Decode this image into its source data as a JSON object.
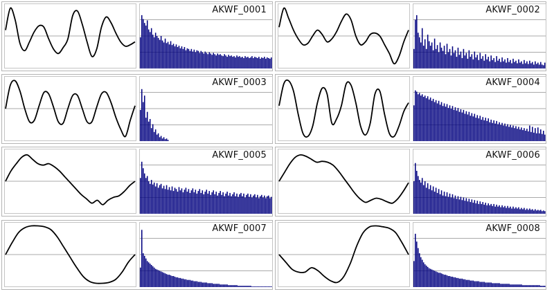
{
  "colors": {
    "bar": "#00007f",
    "wave": "#000000",
    "guide": "#a9a9a9",
    "frame": "#b4b4b4"
  },
  "chart_data": [
    {
      "type": "line+bar",
      "title": "AKWF_0001",
      "waveform": [
        0.2,
        0.95,
        0.55,
        -0.25,
        -0.5,
        -0.2,
        0.15,
        0.35,
        0.3,
        -0.1,
        -0.45,
        -0.6,
        -0.4,
        -0.1,
        0.7,
        0.85,
        0.4,
        -0.2,
        -0.7,
        -0.45,
        0.3,
        0.65,
        0.45,
        0.1,
        -0.2,
        -0.35,
        -0.3,
        -0.2
      ],
      "spectrum": [
        0.48,
        0.82,
        0.76,
        0.7,
        0.66,
        0.74,
        0.6,
        0.56,
        0.62,
        0.52,
        0.48,
        0.55,
        0.5,
        0.47,
        0.44,
        0.5,
        0.43,
        0.4,
        0.46,
        0.39,
        0.41,
        0.37,
        0.42,
        0.36,
        0.38,
        0.34,
        0.37,
        0.33,
        0.35,
        0.31,
        0.34,
        0.3,
        0.33,
        0.28,
        0.31,
        0.3,
        0.27,
        0.3,
        0.26,
        0.29,
        0.25,
        0.28,
        0.27,
        0.24,
        0.27,
        0.25,
        0.23,
        0.26,
        0.24,
        0.22,
        0.25,
        0.23,
        0.21,
        0.24,
        0.22,
        0.2,
        0.23,
        0.21,
        0.22,
        0.2,
        0.19,
        0.22,
        0.2,
        0.18,
        0.21,
        0.19,
        0.2,
        0.18,
        0.19,
        0.17,
        0.2,
        0.18,
        0.19,
        0.17,
        0.18,
        0.16,
        0.19,
        0.17,
        0.18,
        0.16,
        0.17,
        0.19,
        0.16,
        0.18,
        0.17,
        0.16,
        0.18,
        0.15,
        0.17,
        0.16,
        0.18,
        0.15,
        0.17,
        0.16,
        0.15,
        0.17
      ]
    },
    {
      "type": "line+bar",
      "title": "AKWF_0002",
      "waveform": [
        0.3,
        0.95,
        0.6,
        0.2,
        -0.1,
        -0.3,
        -0.25,
        0.0,
        0.2,
        0.05,
        -0.2,
        -0.1,
        0.15,
        0.5,
        0.75,
        0.55,
        0.0,
        -0.3,
        -0.2,
        0.05,
        0.1,
        0.0,
        -0.3,
        -0.6,
        -0.95,
        -0.7,
        -0.2,
        0.2
      ],
      "spectrum": [
        0.3,
        0.75,
        0.82,
        0.55,
        0.48,
        0.4,
        0.62,
        0.35,
        0.45,
        0.3,
        0.52,
        0.42,
        0.35,
        0.4,
        0.28,
        0.46,
        0.3,
        0.36,
        0.25,
        0.4,
        0.32,
        0.27,
        0.35,
        0.22,
        0.38,
        0.25,
        0.3,
        0.2,
        0.34,
        0.24,
        0.28,
        0.18,
        0.32,
        0.21,
        0.26,
        0.16,
        0.3,
        0.2,
        0.24,
        0.15,
        0.28,
        0.18,
        0.22,
        0.14,
        0.26,
        0.17,
        0.21,
        0.13,
        0.24,
        0.15,
        0.19,
        0.12,
        0.22,
        0.14,
        0.18,
        0.11,
        0.2,
        0.13,
        0.16,
        0.1,
        0.19,
        0.12,
        0.15,
        0.1,
        0.17,
        0.11,
        0.14,
        0.09,
        0.16,
        0.1,
        0.13,
        0.08,
        0.15,
        0.1,
        0.12,
        0.08,
        0.14,
        0.09,
        0.11,
        0.07,
        0.13,
        0.08,
        0.11,
        0.07,
        0.12,
        0.08,
        0.1,
        0.06,
        0.11,
        0.07,
        0.09,
        0.06,
        0.1,
        0.06,
        0.05,
        0.09
      ]
    },
    {
      "type": "line+bar",
      "title": "AKWF_0003",
      "waveform": [
        0.0,
        0.8,
        0.95,
        0.6,
        0.0,
        -0.45,
        -0.4,
        0.1,
        0.55,
        0.5,
        0.05,
        -0.45,
        -0.5,
        0.0,
        0.45,
        0.45,
        0.0,
        -0.45,
        -0.45,
        0.05,
        0.5,
        0.55,
        0.2,
        -0.3,
        -0.7,
        -0.95,
        -0.4,
        0.1
      ],
      "spectrum": [
        0.48,
        0.8,
        0.6,
        0.7,
        0.36,
        0.45,
        0.3,
        0.34,
        0.2,
        0.26,
        0.14,
        0.18,
        0.1,
        0.12,
        0.06,
        0.08,
        0.04,
        0.06,
        0.03,
        0.04,
        0.02,
        0.0,
        0.0,
        0.0,
        0.0,
        0.0,
        0.0,
        0.0,
        0.0,
        0.0,
        0.0,
        0.0,
        0.0,
        0.0,
        0.0,
        0.0,
        0.0,
        0.0,
        0.0,
        0.0,
        0.0,
        0.0,
        0.0,
        0.0,
        0.0,
        0.0,
        0.0,
        0.0,
        0.0,
        0.0,
        0.0,
        0.0,
        0.0,
        0.0,
        0.0,
        0.0,
        0.0,
        0.0,
        0.0,
        0.0,
        0.0,
        0.0,
        0.0,
        0.0,
        0.0,
        0.0,
        0.0,
        0.0,
        0.0,
        0.0,
        0.0,
        0.0,
        0.0,
        0.0,
        0.0,
        0.0,
        0.0,
        0.0,
        0.0,
        0.0,
        0.0,
        0.0,
        0.0,
        0.0,
        0.0,
        0.0,
        0.0,
        0.0,
        0.0,
        0.0,
        0.0,
        0.0,
        0.0,
        0.0,
        0.0,
        0.0
      ]
    },
    {
      "type": "line+bar",
      "title": "AKWF_0004",
      "waveform": [
        0.1,
        0.85,
        0.95,
        0.6,
        -0.2,
        -0.85,
        -0.95,
        -0.6,
        0.2,
        0.7,
        0.5,
        -0.5,
        -0.35,
        0.1,
        0.85,
        0.8,
        0.2,
        -0.6,
        -0.9,
        -0.5,
        0.5,
        0.6,
        -0.2,
        -0.85,
        -0.95,
        -0.6,
        -0.1,
        0.2
      ],
      "spectrum": [
        0.55,
        0.78,
        0.76,
        0.72,
        0.74,
        0.7,
        0.72,
        0.68,
        0.7,
        0.66,
        0.69,
        0.64,
        0.67,
        0.62,
        0.65,
        0.6,
        0.63,
        0.58,
        0.62,
        0.56,
        0.6,
        0.54,
        0.58,
        0.53,
        0.57,
        0.51,
        0.55,
        0.5,
        0.54,
        0.48,
        0.52,
        0.47,
        0.51,
        0.45,
        0.49,
        0.44,
        0.48,
        0.42,
        0.46,
        0.41,
        0.45,
        0.39,
        0.43,
        0.38,
        0.42,
        0.36,
        0.4,
        0.35,
        0.39,
        0.33,
        0.37,
        0.32,
        0.36,
        0.31,
        0.35,
        0.29,
        0.33,
        0.28,
        0.32,
        0.27,
        0.31,
        0.26,
        0.29,
        0.25,
        0.28,
        0.24,
        0.27,
        0.23,
        0.26,
        0.22,
        0.25,
        0.21,
        0.24,
        0.2,
        0.23,
        0.19,
        0.22,
        0.18,
        0.21,
        0.17,
        0.2,
        0.16,
        0.19,
        0.15,
        0.24,
        0.14,
        0.22,
        0.13,
        0.2,
        0.12,
        0.21,
        0.12,
        0.18,
        0.11,
        0.16,
        0.1
      ]
    },
    {
      "type": "line+bar",
      "title": "AKWF_0005",
      "waveform": [
        0.0,
        0.35,
        0.6,
        0.82,
        0.9,
        0.75,
        0.6,
        0.55,
        0.6,
        0.5,
        0.35,
        0.15,
        -0.05,
        -0.25,
        -0.45,
        -0.6,
        -0.75,
        -0.65,
        -0.8,
        -0.65,
        -0.55,
        -0.5,
        -0.35,
        -0.15,
        0.0
      ],
      "spectrum": [
        0.55,
        0.8,
        0.7,
        0.62,
        0.55,
        0.58,
        0.5,
        0.46,
        0.52,
        0.45,
        0.48,
        0.42,
        0.47,
        0.4,
        0.44,
        0.46,
        0.39,
        0.43,
        0.38,
        0.44,
        0.37,
        0.41,
        0.36,
        0.42,
        0.35,
        0.4,
        0.38,
        0.34,
        0.41,
        0.36,
        0.39,
        0.33,
        0.37,
        0.4,
        0.34,
        0.38,
        0.32,
        0.36,
        0.39,
        0.33,
        0.37,
        0.31,
        0.35,
        0.38,
        0.32,
        0.36,
        0.3,
        0.34,
        0.37,
        0.31,
        0.35,
        0.29,
        0.33,
        0.36,
        0.3,
        0.34,
        0.28,
        0.32,
        0.35,
        0.29,
        0.33,
        0.27,
        0.31,
        0.34,
        0.28,
        0.32,
        0.27,
        0.3,
        0.33,
        0.27,
        0.31,
        0.26,
        0.3,
        0.32,
        0.27,
        0.31,
        0.25,
        0.29,
        0.31,
        0.26,
        0.3,
        0.25,
        0.28,
        0.3,
        0.25,
        0.29,
        0.24,
        0.27,
        0.29,
        0.25,
        0.28,
        0.24,
        0.27,
        0.28,
        0.24,
        0.26
      ]
    },
    {
      "type": "line+bar",
      "title": "AKWF_0006",
      "waveform": [
        0.0,
        0.3,
        0.6,
        0.82,
        0.9,
        0.85,
        0.75,
        0.65,
        0.68,
        0.65,
        0.55,
        0.35,
        0.1,
        -0.15,
        -0.4,
        -0.6,
        -0.72,
        -0.65,
        -0.58,
        -0.62,
        -0.7,
        -0.75,
        -0.6,
        -0.35,
        -0.05
      ],
      "spectrum": [
        0.5,
        0.78,
        0.66,
        0.58,
        0.52,
        0.48,
        0.55,
        0.44,
        0.5,
        0.4,
        0.47,
        0.38,
        0.44,
        0.36,
        0.42,
        0.34,
        0.4,
        0.32,
        0.38,
        0.3,
        0.36,
        0.28,
        0.34,
        0.27,
        0.33,
        0.26,
        0.31,
        0.25,
        0.3,
        0.24,
        0.28,
        0.23,
        0.27,
        0.22,
        0.26,
        0.21,
        0.25,
        0.2,
        0.24,
        0.19,
        0.23,
        0.18,
        0.22,
        0.17,
        0.21,
        0.16,
        0.2,
        0.15,
        0.19,
        0.15,
        0.18,
        0.14,
        0.17,
        0.13,
        0.16,
        0.13,
        0.15,
        0.12,
        0.15,
        0.11,
        0.14,
        0.11,
        0.13,
        0.1,
        0.13,
        0.1,
        0.12,
        0.09,
        0.12,
        0.09,
        0.11,
        0.08,
        0.11,
        0.08,
        0.1,
        0.08,
        0.1,
        0.07,
        0.09,
        0.07,
        0.09,
        0.06,
        0.08,
        0.06,
        0.08,
        0.06,
        0.07,
        0.05,
        0.07,
        0.05,
        0.06,
        0.05,
        0.06,
        0.04,
        0.05,
        0.04
      ]
    },
    {
      "type": "line+bar",
      "title": "AKWF_0007",
      "waveform": [
        0.0,
        0.4,
        0.75,
        0.92,
        0.98,
        0.98,
        0.95,
        0.85,
        0.6,
        0.25,
        -0.1,
        -0.45,
        -0.75,
        -0.92,
        -0.98,
        -0.98,
        -0.95,
        -0.85,
        -0.6,
        -0.25,
        0.0
      ],
      "spectrum": [
        0.3,
        0.88,
        0.52,
        0.48,
        0.44,
        0.4,
        0.38,
        0.36,
        0.34,
        0.32,
        0.3,
        0.28,
        0.27,
        0.26,
        0.25,
        0.24,
        0.23,
        0.22,
        0.21,
        0.2,
        0.19,
        0.19,
        0.18,
        0.17,
        0.17,
        0.16,
        0.15,
        0.15,
        0.14,
        0.14,
        0.13,
        0.13,
        0.12,
        0.12,
        0.11,
        0.11,
        0.11,
        0.1,
        0.1,
        0.09,
        0.09,
        0.09,
        0.08,
        0.08,
        0.08,
        0.07,
        0.07,
        0.07,
        0.07,
        0.06,
        0.06,
        0.06,
        0.06,
        0.05,
        0.05,
        0.05,
        0.05,
        0.05,
        0.04,
        0.04,
        0.04,
        0.04,
        0.04,
        0.04,
        0.03,
        0.03,
        0.03,
        0.03,
        0.03,
        0.03,
        0.03,
        0.02,
        0.02,
        0.02,
        0.02,
        0.02,
        0.02,
        0.02,
        0.02,
        0.02,
        0.02,
        0.01,
        0.01,
        0.01,
        0.01,
        0.01,
        0.01,
        0.01,
        0.01,
        0.01,
        0.01,
        0.01,
        0.01,
        0.01,
        0.01,
        0.01
      ]
    },
    {
      "type": "line+bar",
      "title": "AKWF_0008",
      "waveform": [
        0.0,
        -0.25,
        -0.5,
        -0.6,
        -0.6,
        -0.45,
        -0.55,
        -0.75,
        -0.9,
        -0.95,
        -0.75,
        -0.3,
        0.3,
        0.75,
        0.95,
        0.98,
        0.95,
        0.9,
        0.75,
        0.4,
        0.0
      ],
      "spectrum": [
        0.4,
        0.82,
        0.7,
        0.6,
        0.52,
        0.46,
        0.42,
        0.38,
        0.35,
        0.33,
        0.31,
        0.29,
        0.28,
        0.27,
        0.26,
        0.25,
        0.24,
        0.23,
        0.22,
        0.22,
        0.21,
        0.2,
        0.19,
        0.19,
        0.18,
        0.17,
        0.17,
        0.16,
        0.16,
        0.15,
        0.15,
        0.14,
        0.14,
        0.13,
        0.13,
        0.13,
        0.12,
        0.12,
        0.11,
        0.11,
        0.11,
        0.1,
        0.1,
        0.1,
        0.09,
        0.09,
        0.09,
        0.09,
        0.08,
        0.08,
        0.08,
        0.08,
        0.07,
        0.07,
        0.07,
        0.07,
        0.07,
        0.06,
        0.06,
        0.06,
        0.06,
        0.06,
        0.06,
        0.05,
        0.05,
        0.05,
        0.05,
        0.05,
        0.05,
        0.05,
        0.04,
        0.04,
        0.04,
        0.04,
        0.04,
        0.04,
        0.04,
        0.04,
        0.04,
        0.03,
        0.03,
        0.03,
        0.03,
        0.03,
        0.03,
        0.03,
        0.03,
        0.03,
        0.03,
        0.03,
        0.03,
        0.03,
        0.02,
        0.02,
        0.02,
        0.02
      ]
    }
  ]
}
